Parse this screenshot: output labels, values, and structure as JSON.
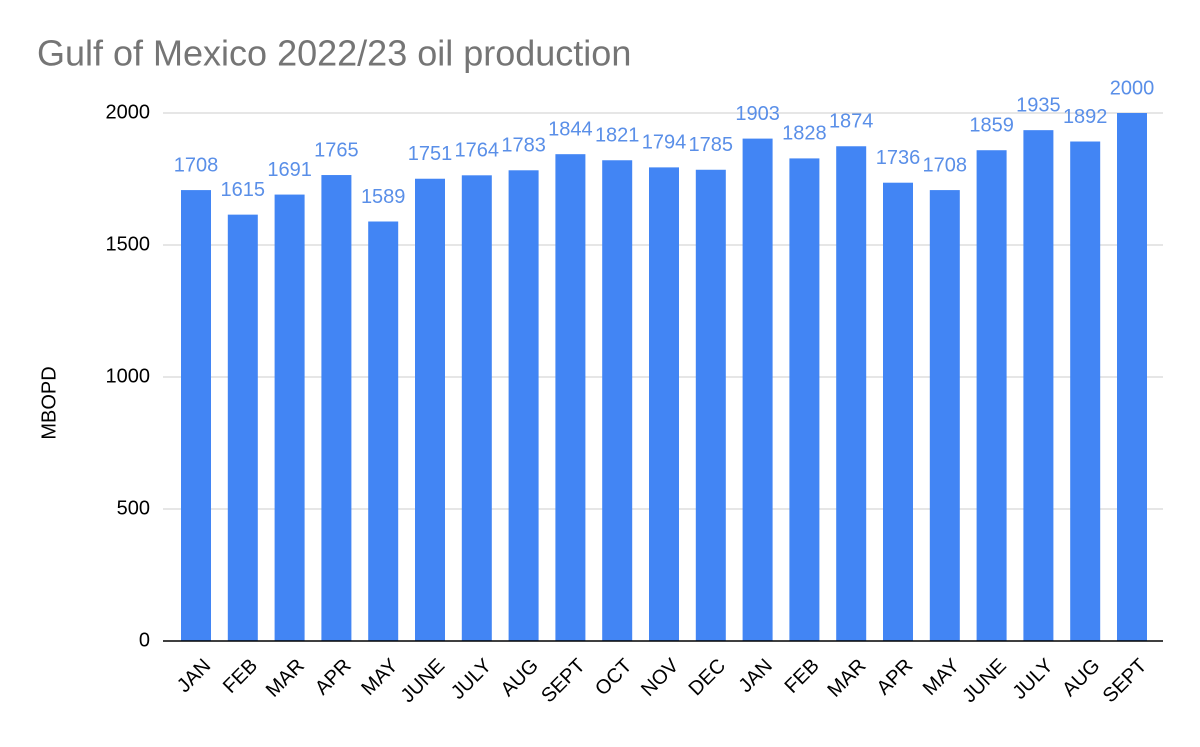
{
  "chart_data": {
    "type": "bar",
    "title": "Gulf of Mexico 2022/23 oil production",
    "y_label": "MBOPD",
    "categories": [
      "JAN",
      "FEB",
      "MAR",
      "APR",
      "MAY",
      "JUNE",
      "JULY",
      "AUG",
      "SEPT",
      "OCT",
      "NOV",
      "DEC",
      "JAN",
      "FEB",
      "MAR",
      "APR",
      "MAY",
      "JUNE",
      "JULY",
      "AUG",
      "SEPT"
    ],
    "values": [
      1708,
      1615,
      1691,
      1765,
      1589,
      1751,
      1764,
      1783,
      1844,
      1821,
      1794,
      1785,
      1903,
      1828,
      1874,
      1736,
      1708,
      1859,
      1935,
      1892,
      2000
    ],
    "color": "#4285f4",
    "ylim": [
      0,
      2000
    ],
    "yticks": [
      0,
      500,
      1000,
      1500,
      2000
    ],
    "grid": true
  }
}
